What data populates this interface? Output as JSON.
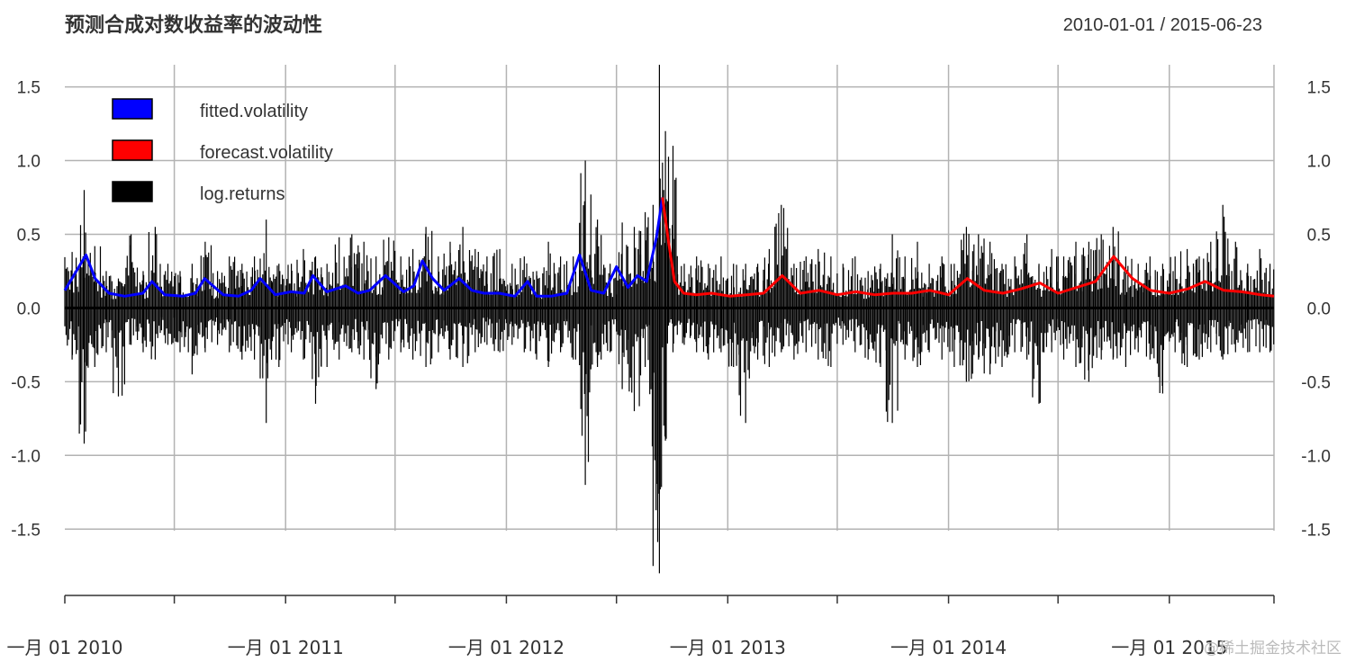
{
  "chart_data": {
    "type": "line",
    "title": "预测合成对数收益率的波动性",
    "date_range": "2010-01-01 / 2015-06-23",
    "ylim": [
      -1.95,
      1.65
    ],
    "y_ticks": [
      1.5,
      1.0,
      0.5,
      0.0,
      -0.5,
      -1.0,
      -1.5
    ],
    "y_tick_labels": [
      "1.5",
      "1.0",
      "0.5",
      "0.0",
      "-0.5",
      "-1.0",
      "-1.5"
    ],
    "x_start": "2010-01-01",
    "x_end": "2015-06-23",
    "x_tick_labels": [
      {
        "date": "2010-01-01",
        "label": "一月 01 2010"
      },
      {
        "date": "2011-01-01",
        "label": "一月 01 2011"
      },
      {
        "date": "2012-01-01",
        "label": "一月 01 2012"
      },
      {
        "date": "2013-01-01",
        "label": "一月 01 2013"
      },
      {
        "date": "2014-01-01",
        "label": "一月 01 2014"
      },
      {
        "date": "2015-01-01",
        "label": "一月 01 2015"
      }
    ],
    "grid": true,
    "legend_position": "top-left",
    "legend": [
      {
        "name": "fitted.volatility",
        "color": "#0000ff"
      },
      {
        "name": "forecast.volatility",
        "color": "#ff0000"
      },
      {
        "name": "log.returns",
        "color": "#000000"
      }
    ],
    "series": [
      {
        "name": "fitted.volatility",
        "color": "#0000ff",
        "x": [
          "2010-01-01",
          "2010-01-20",
          "2010-02-05",
          "2010-02-20",
          "2010-03-15",
          "2010-04-10",
          "2010-05-10",
          "2010-05-25",
          "2010-06-15",
          "2010-07-15",
          "2010-08-05",
          "2010-08-20",
          "2010-09-20",
          "2010-10-15",
          "2010-11-05",
          "2010-11-20",
          "2010-12-15",
          "2011-01-10",
          "2011-02-01",
          "2011-02-15",
          "2011-03-10",
          "2011-04-10",
          "2011-05-01",
          "2011-05-20",
          "2011-06-15",
          "2011-07-15",
          "2011-08-01",
          "2011-08-15",
          "2011-09-01",
          "2011-09-20",
          "2011-10-15",
          "2011-11-05",
          "2011-11-25",
          "2011-12-20",
          "2012-01-15",
          "2012-02-05",
          "2012-02-20",
          "2012-03-15",
          "2012-04-10",
          "2012-05-01",
          "2012-05-20",
          "2012-06-10",
          "2012-07-01",
          "2012-07-20",
          "2012-08-05",
          "2012-08-20",
          "2012-09-05",
          "2012-09-15"
        ],
        "y": [
          0.12,
          0.25,
          0.36,
          0.2,
          0.1,
          0.08,
          0.1,
          0.18,
          0.09,
          0.08,
          0.1,
          0.2,
          0.09,
          0.08,
          0.12,
          0.2,
          0.09,
          0.11,
          0.1,
          0.22,
          0.11,
          0.15,
          0.1,
          0.12,
          0.22,
          0.11,
          0.15,
          0.32,
          0.2,
          0.12,
          0.2,
          0.12,
          0.1,
          0.1,
          0.08,
          0.18,
          0.08,
          0.08,
          0.1,
          0.36,
          0.12,
          0.1,
          0.28,
          0.14,
          0.22,
          0.18,
          0.48,
          0.75
        ]
      },
      {
        "name": "forecast.volatility",
        "color": "#ff0000",
        "x": [
          "2012-09-15",
          "2012-09-25",
          "2012-10-05",
          "2012-10-20",
          "2012-11-10",
          "2012-12-05",
          "2013-01-05",
          "2013-02-01",
          "2013-03-01",
          "2013-04-01",
          "2013-05-01",
          "2013-06-01",
          "2013-07-01",
          "2013-08-01",
          "2013-09-01",
          "2013-10-01",
          "2013-11-01",
          "2013-12-01",
          "2014-01-01",
          "2014-02-01",
          "2014-03-01",
          "2014-04-01",
          "2014-05-01",
          "2014-06-01",
          "2014-07-01",
          "2014-08-01",
          "2014-09-01",
          "2014-10-01",
          "2014-11-01",
          "2014-12-01",
          "2015-01-01",
          "2015-02-01",
          "2015-03-01",
          "2015-04-01",
          "2015-05-01",
          "2015-06-01",
          "2015-06-23"
        ],
        "y": [
          0.75,
          0.45,
          0.18,
          0.1,
          0.09,
          0.1,
          0.08,
          0.09,
          0.1,
          0.22,
          0.1,
          0.12,
          0.09,
          0.11,
          0.09,
          0.1,
          0.1,
          0.12,
          0.09,
          0.2,
          0.12,
          0.1,
          0.13,
          0.17,
          0.1,
          0.14,
          0.18,
          0.35,
          0.2,
          0.12,
          0.1,
          0.13,
          0.18,
          0.12,
          0.11,
          0.09,
          0.08
        ]
      },
      {
        "name": "log.returns",
        "color": "#000000",
        "x": [
          "2010-01-01",
          "2010-01-25",
          "2010-02-10",
          "2010-03-01",
          "2010-03-20",
          "2010-04-10",
          "2010-05-01",
          "2010-05-20",
          "2010-06-10",
          "2010-07-01",
          "2010-07-20",
          "2010-08-10",
          "2010-09-01",
          "2010-09-20",
          "2010-10-10",
          "2010-11-01",
          "2010-11-20",
          "2010-12-10",
          "2011-01-01",
          "2011-01-20",
          "2011-02-10",
          "2011-03-01",
          "2011-03-20",
          "2011-04-10",
          "2011-05-01",
          "2011-05-20",
          "2011-06-10",
          "2011-07-01",
          "2011-07-20",
          "2011-08-10",
          "2011-09-01",
          "2011-09-20",
          "2011-10-10",
          "2011-11-01",
          "2011-11-20",
          "2011-12-10",
          "2012-01-01",
          "2012-01-20",
          "2012-02-10",
          "2012-03-01",
          "2012-03-20",
          "2012-04-10",
          "2012-05-01",
          "2012-05-20",
          "2012-06-10",
          "2012-07-01",
          "2012-07-20",
          "2012-08-10",
          "2012-08-25",
          "2012-09-05",
          "2012-09-15",
          "2012-09-25",
          "2012-10-10",
          "2012-11-01",
          "2012-11-20",
          "2012-12-10",
          "2013-01-01",
          "2013-01-20",
          "2013-02-10",
          "2013-03-01",
          "2013-03-20",
          "2013-04-10",
          "2013-05-01",
          "2013-05-20",
          "2013-06-10",
          "2013-07-01",
          "2013-07-20",
          "2013-08-10",
          "2013-09-01",
          "2013-09-20",
          "2013-10-10",
          "2013-11-01",
          "2013-11-20",
          "2013-12-10",
          "2014-01-01",
          "2014-01-20",
          "2014-02-10",
          "2014-03-01",
          "2014-03-20",
          "2014-04-10",
          "2014-05-01",
          "2014-05-20",
          "2014-06-10",
          "2014-07-01",
          "2014-07-20",
          "2014-08-10",
          "2014-09-01",
          "2014-09-20",
          "2014-10-10",
          "2014-11-01",
          "2014-11-20",
          "2014-12-10",
          "2015-01-01",
          "2015-01-20",
          "2015-02-10",
          "2015-03-01",
          "2015-03-20",
          "2015-04-10",
          "2015-05-01",
          "2015-05-20",
          "2015-06-10"
        ],
        "high": [
          0.38,
          0.8,
          0.42,
          0.25,
          0.2,
          0.5,
          0.25,
          0.55,
          0.3,
          0.25,
          0.3,
          0.45,
          0.25,
          0.35,
          0.3,
          0.35,
          0.6,
          0.3,
          0.3,
          0.4,
          0.35,
          0.3,
          0.48,
          0.5,
          0.45,
          0.35,
          0.48,
          0.35,
          0.4,
          0.55,
          0.35,
          0.45,
          0.55,
          0.4,
          0.35,
          0.4,
          0.3,
          0.35,
          0.25,
          0.45,
          0.35,
          0.35,
          1.0,
          0.6,
          0.3,
          0.58,
          0.55,
          0.65,
          0.7,
          1.65,
          1.2,
          1.1,
          0.3,
          0.35,
          0.3,
          0.35,
          0.3,
          0.3,
          0.3,
          0.4,
          0.7,
          0.3,
          0.35,
          0.4,
          0.35,
          0.3,
          0.35,
          0.25,
          0.3,
          0.5,
          0.35,
          0.45,
          0.3,
          0.35,
          0.3,
          0.55,
          0.5,
          0.45,
          0.3,
          0.35,
          0.5,
          0.3,
          0.4,
          0.35,
          0.45,
          0.45,
          0.5,
          0.55,
          0.35,
          0.3,
          0.35,
          0.3,
          0.35,
          0.4,
          0.35,
          0.45,
          0.7,
          0.45,
          0.3,
          0.4,
          0.3
        ],
        "low": [
          -0.35,
          -0.92,
          -0.4,
          -0.3,
          -0.6,
          -0.25,
          -0.3,
          -0.35,
          -0.25,
          -0.3,
          -0.45,
          -0.3,
          -0.25,
          -0.3,
          -0.35,
          -0.35,
          -0.78,
          -0.4,
          -0.3,
          -0.35,
          -0.65,
          -0.4,
          -0.35,
          -0.3,
          -0.35,
          -0.55,
          -0.35,
          -0.3,
          -0.35,
          -0.4,
          -0.3,
          -0.35,
          -0.4,
          -0.3,
          -0.25,
          -0.3,
          -0.25,
          -0.3,
          -0.35,
          -0.4,
          -0.3,
          -0.35,
          -1.2,
          -0.4,
          -0.3,
          -0.55,
          -0.7,
          -0.4,
          -1.75,
          -1.8,
          -0.9,
          -0.3,
          -0.25,
          -0.3,
          -0.35,
          -0.3,
          -0.4,
          -0.78,
          -0.35,
          -0.4,
          -0.3,
          -0.35,
          -0.3,
          -0.35,
          -0.4,
          -0.25,
          -0.3,
          -0.35,
          -0.4,
          -0.78,
          -0.35,
          -0.4,
          -0.3,
          -0.35,
          -0.4,
          -0.5,
          -0.35,
          -0.45,
          -0.4,
          -0.3,
          -0.35,
          -0.65,
          -0.3,
          -0.35,
          -0.4,
          -0.5,
          -0.35,
          -0.35,
          -0.4,
          -0.3,
          -0.35,
          -0.58,
          -0.3,
          -0.4,
          -0.35,
          -0.3,
          -0.35,
          -0.3,
          -0.3,
          -0.3,
          -0.3
        ]
      }
    ]
  },
  "watermark": "@稀土掘金技术社区"
}
